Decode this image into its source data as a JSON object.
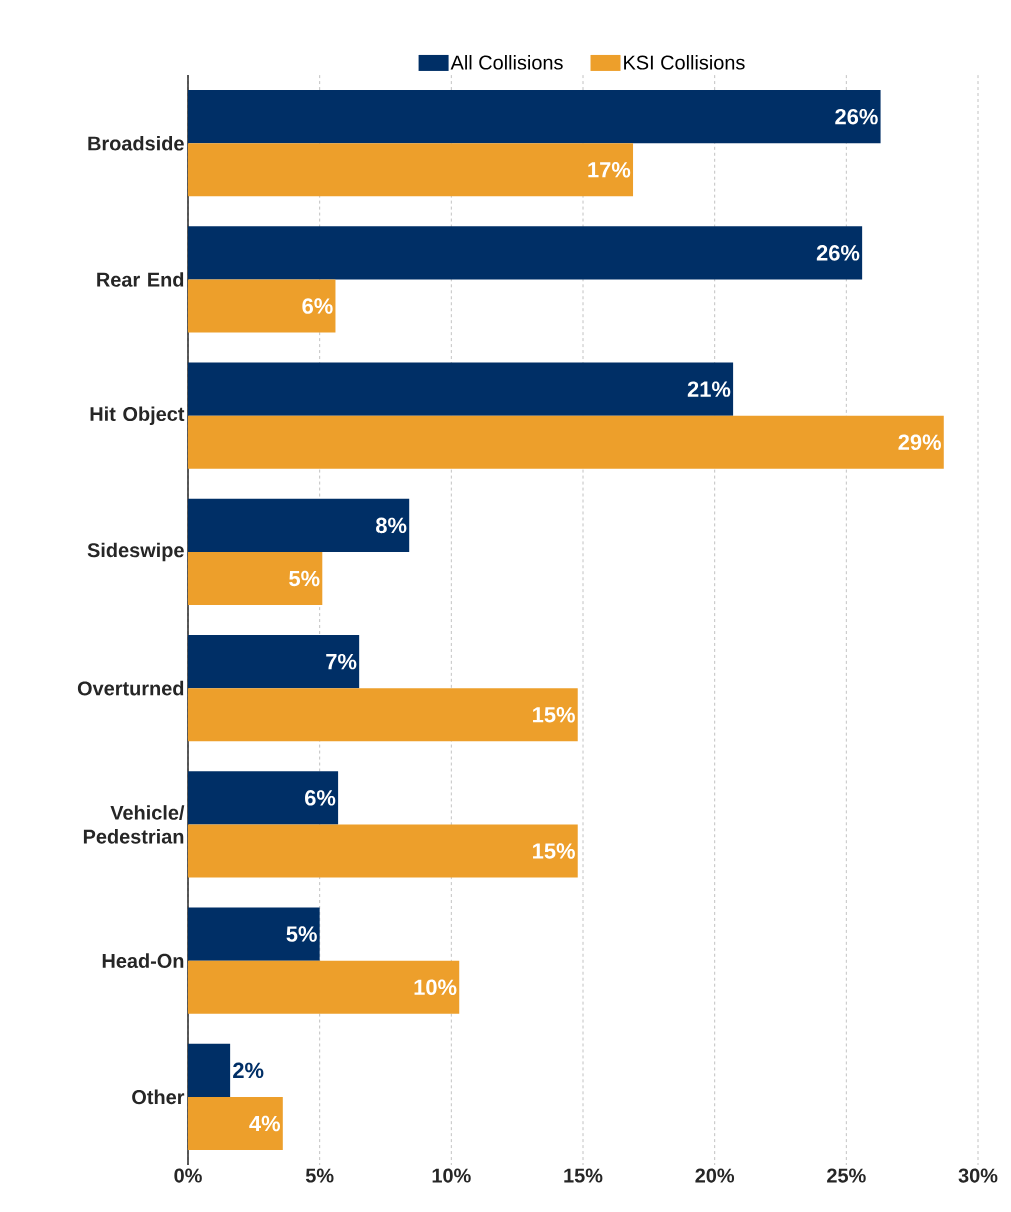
{
  "chart_data": {
    "type": "bar",
    "orientation": "horizontal",
    "categories": [
      "Broadside",
      "Rear End",
      "Hit Object",
      "Sideswipe",
      "Overturned",
      "Vehicle/ Pedestrian",
      "Head-On",
      "Other"
    ],
    "series": [
      {
        "name": "All Collisions",
        "color": "#002f66",
        "values": [
          26.3,
          25.6,
          20.7,
          8.4,
          6.5,
          5.7,
          5.0,
          1.6
        ],
        "value_labels": [
          "26%",
          "26%",
          "21%",
          "8%",
          "7%",
          "6%",
          "5%",
          "2%"
        ]
      },
      {
        "name": "KSI Collisions",
        "color": "#ed9f2b",
        "values": [
          16.9,
          5.6,
          28.7,
          5.1,
          14.8,
          14.8,
          10.3,
          3.6
        ],
        "value_labels": [
          "17%",
          "6%",
          "29%",
          "5%",
          "15%",
          "15%",
          "10%",
          "4%"
        ]
      }
    ],
    "xlim": [
      0,
      30
    ],
    "xticks": [
      {
        "value": 0,
        "label": "0%"
      },
      {
        "value": 5,
        "label": "5%"
      },
      {
        "value": 10,
        "label": "10%"
      },
      {
        "value": 15,
        "label": "15%"
      },
      {
        "value": 20,
        "label": "20%"
      },
      {
        "value": 25,
        "label": "25%"
      },
      {
        "value": 30,
        "label": "30%"
      }
    ],
    "grid": "x",
    "legend": "top"
  }
}
